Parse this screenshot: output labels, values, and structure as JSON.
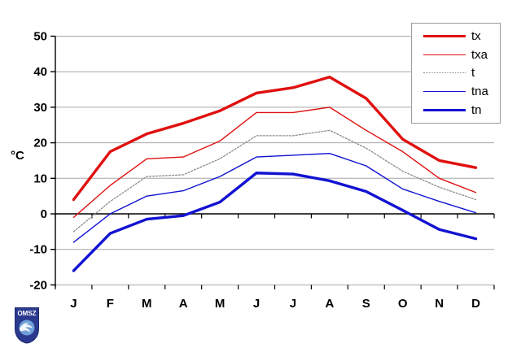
{
  "figure": {
    "ylabel": "°C",
    "logo": {
      "text": "OMSZ",
      "shield_color": "#2b3a8f",
      "wave_color": "#6f9fd8"
    }
  },
  "chart_data": {
    "type": "line",
    "title": "",
    "categories": [
      "J",
      "F",
      "M",
      "A",
      "M",
      "J",
      "J",
      "A",
      "S",
      "O",
      "N",
      "D"
    ],
    "ylabel": "°C",
    "ylim": [
      -20,
      50
    ],
    "ytick_step": 10,
    "yticks": [
      -20,
      -10,
      0,
      10,
      20,
      30,
      40,
      50
    ],
    "grid": true,
    "legend_position": "top-right",
    "gridline_color": "#a6a6a6",
    "axis_color": "#000000",
    "series": [
      {
        "name": "tx",
        "color": "#e01010",
        "width": 3.4,
        "dash": "",
        "values": [
          4,
          17.5,
          22.5,
          25.5,
          29,
          34,
          35.5,
          38.5,
          32.5,
          21,
          15,
          13
        ]
      },
      {
        "name": "txa",
        "color": "#e01010",
        "width": 1.4,
        "dash": "",
        "values": [
          -1,
          8,
          15.5,
          16,
          20.5,
          28.5,
          28.5,
          30,
          23.5,
          17.5,
          10,
          6
        ]
      },
      {
        "name": "t",
        "color": "#8c8c8c",
        "width": 1.3,
        "dash": "2,2",
        "values": [
          -5,
          3.5,
          10.5,
          11,
          15.5,
          22,
          22,
          23.5,
          18.5,
          12,
          7.5,
          4
        ]
      },
      {
        "name": "tna",
        "color": "#1212d2",
        "width": 1.4,
        "dash": "",
        "values": [
          -8,
          0,
          5,
          6.5,
          10.5,
          16,
          16.5,
          17,
          13.5,
          7,
          3.5,
          0.3
        ]
      },
      {
        "name": "tn",
        "color": "#1212d2",
        "width": 3.4,
        "dash": "",
        "values": [
          -16,
          -5.5,
          -1.5,
          -0.5,
          3.3,
          11.5,
          11.2,
          9.3,
          6.3,
          1,
          -4.4,
          -7
        ]
      }
    ]
  }
}
